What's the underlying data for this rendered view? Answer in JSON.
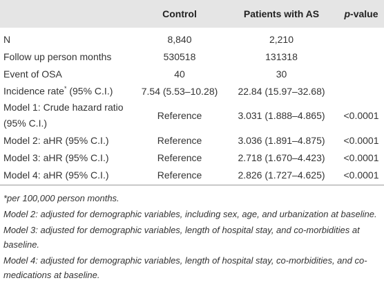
{
  "table": {
    "header": {
      "control": "Control",
      "patients": "Patients with AS",
      "p_italic": "p",
      "p_rest": "-value"
    },
    "rows": [
      {
        "label": "N",
        "values": [
          "8,840",
          "2,210"
        ]
      },
      {
        "label": "Follow up person months",
        "values": [
          "530518",
          "131318"
        ]
      },
      {
        "label": "Event of OSA",
        "values": [
          "40",
          "30"
        ]
      },
      {
        "label": "Incidence rate",
        "label_sup": "*",
        "label_rest": " (95% C.I.)",
        "values": [
          "7.54 (5.53–10.28)",
          "22.84 (15.97–32.68)"
        ]
      },
      {
        "label": "Model 1: Crude hazard ratio (95% C.I.)",
        "values": [
          "Reference",
          "3.031 (1.888–4.865)",
          "<0.0001"
        ]
      },
      {
        "label": "Model 2: aHR (95% C.I.)",
        "values": [
          "Reference",
          "3.036 (1.891–4.875)",
          "<0.0001"
        ]
      },
      {
        "label": "Model 3: aHR (95% C.I.)",
        "values": [
          "Reference",
          "2.718 (1.670–4.423)",
          "<0.0001"
        ]
      },
      {
        "label": "Model 4: aHR (95% C.I.)",
        "values": [
          "Reference",
          "2.826 (1.727–4.625)",
          "<0.0001"
        ]
      }
    ]
  },
  "footnotes": [
    "*per 100,000 person months.",
    "Model 2: adjusted for demographic variables, including sex, age, and urbanization at baseline.",
    "Model 3: adjusted for demographic variables, length of hospital stay, and co-morbidities at baseline.",
    "Model 4: adjusted for demographic variables, length of hospital stay, co-morbidities, and co-medications at baseline."
  ]
}
